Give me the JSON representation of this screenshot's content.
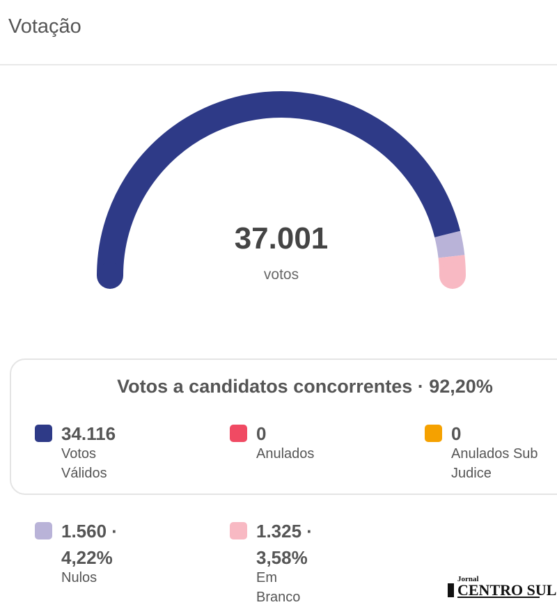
{
  "header": {
    "title": "Votação"
  },
  "chart_data": {
    "type": "gauge",
    "total": {
      "value": "37.001",
      "label": "votos"
    },
    "segments": [
      {
        "name": "Votos Válidos",
        "value": 34116,
        "color": "#2e3a87"
      },
      {
        "name": "Nulos",
        "value": 1560,
        "color": "#b9b3d8"
      },
      {
        "name": "Em Branco",
        "value": 1325,
        "color": "#f8b9c3"
      }
    ]
  },
  "summary": {
    "title": "Votos a candidatos concorrentes · 92,20%",
    "items": [
      {
        "value": "34.116",
        "label": "Votos Válidos",
        "color": "#2e3a87"
      },
      {
        "value": "0",
        "label": "Anulados",
        "color": "#f04a63"
      },
      {
        "value": "0",
        "label": "Anulados Sub Judice",
        "color": "#f5a100"
      }
    ]
  },
  "other": {
    "items": [
      {
        "value": "1.560 ·",
        "value2": "4,22%",
        "label": "Nulos",
        "color": "#b9b3d8"
      },
      {
        "value": "1.325 ·",
        "value2": "3,58%",
        "label": "Em Branco",
        "color": "#f8b9c3"
      }
    ]
  },
  "logo": {
    "small": "Jornal",
    "main": "CENTRO SUL"
  }
}
